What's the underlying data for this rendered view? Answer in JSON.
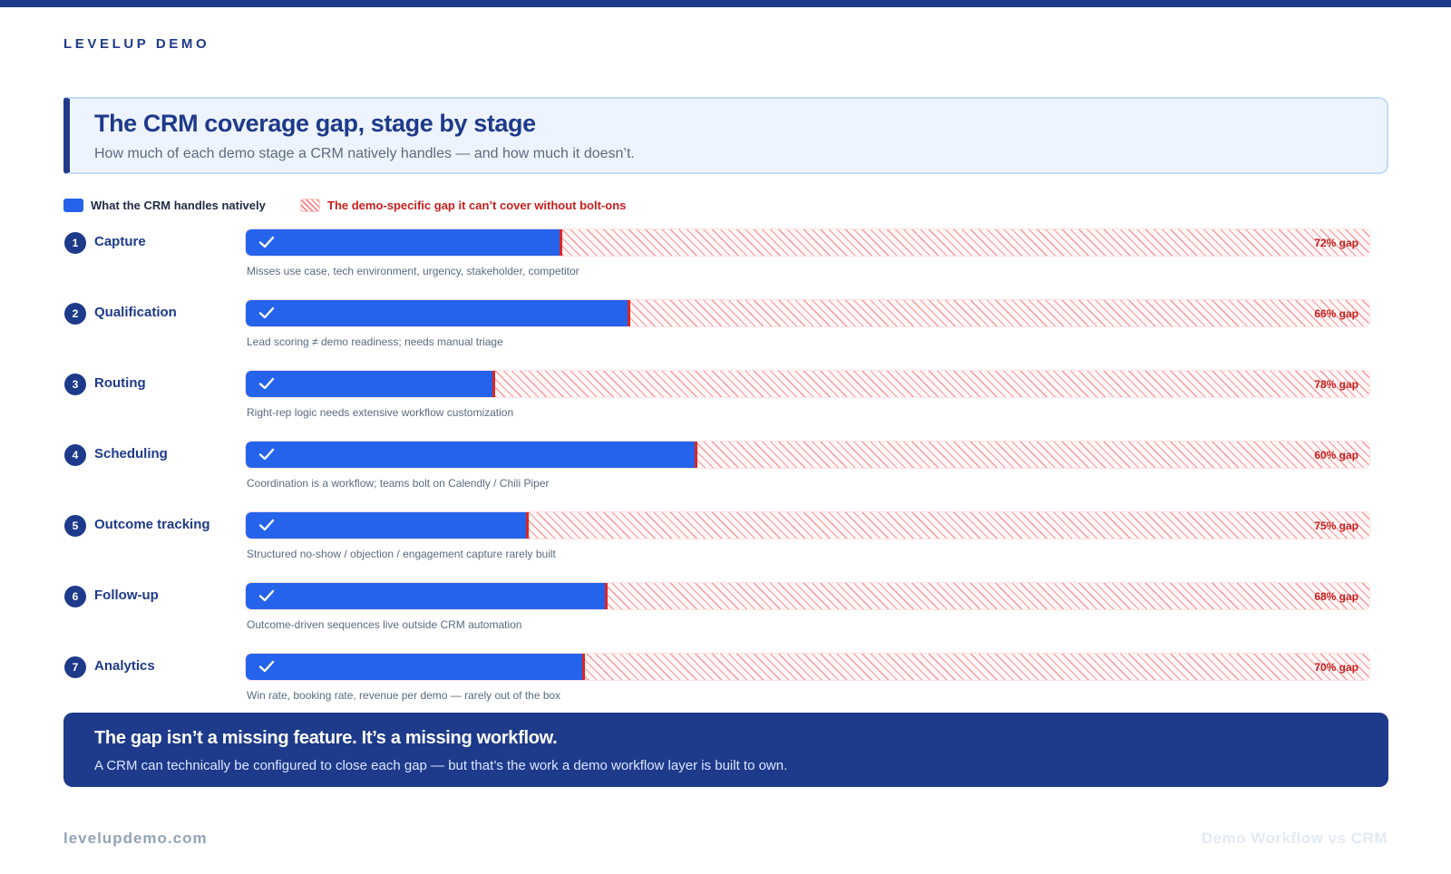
{
  "brand": "LEVELUP DEMO",
  "header": {
    "title": "The CRM coverage gap, stage by stage",
    "subtitle": "How much of each demo stage a CRM natively handles — and how much it doesn’t."
  },
  "legend": {
    "native_label": "What the CRM handles natively",
    "gap_label": "The demo-specific gap it can’t cover without bolt-ons"
  },
  "colors": {
    "native": "#2563eb",
    "gap_hatch": "#f87171",
    "gap_text": "#c81e1e",
    "navy": "#1e3a8a"
  },
  "chart_data": {
    "type": "bar",
    "orientation": "horizontal",
    "stacked": true,
    "xlim": [
      0,
      100
    ],
    "categories": [
      "Capture",
      "Qualification",
      "Routing",
      "Scheduling",
      "Outcome tracking",
      "Follow-up",
      "Analytics"
    ],
    "series": [
      {
        "name": "What the CRM handles natively",
        "values": [
          28,
          34,
          22,
          40,
          25,
          32,
          30
        ]
      },
      {
        "name": "The demo-specific gap it can’t cover without bolt-ons",
        "values": [
          72,
          66,
          78,
          60,
          75,
          68,
          70
        ]
      }
    ],
    "stages": [
      {
        "number": "1",
        "name": "Capture",
        "native": 28,
        "gap": 72,
        "gap_label": "72% gap",
        "note": "Misses use case, tech environment, urgency, stakeholder, competitor"
      },
      {
        "number": "2",
        "name": "Qualification",
        "native": 34,
        "gap": 66,
        "gap_label": "66% gap",
        "note": "Lead scoring ≠ demo readiness; needs manual triage"
      },
      {
        "number": "3",
        "name": "Routing",
        "native": 22,
        "gap": 78,
        "gap_label": "78% gap",
        "note": "Right-rep logic needs extensive workflow customization"
      },
      {
        "number": "4",
        "name": "Scheduling",
        "native": 40,
        "gap": 60,
        "gap_label": "60% gap",
        "note": "Coordination is a workflow; teams bolt on Calendly / Chili Piper"
      },
      {
        "number": "5",
        "name": "Outcome tracking",
        "native": 25,
        "gap": 75,
        "gap_label": "75% gap",
        "note": "Structured no-show / objection / engagement capture rarely built"
      },
      {
        "number": "6",
        "name": "Follow-up",
        "native": 32,
        "gap": 68,
        "gap_label": "68% gap",
        "note": "Outcome-driven sequences live outside CRM automation"
      },
      {
        "number": "7",
        "name": "Analytics",
        "native": 30,
        "gap": 70,
        "gap_label": "70% gap",
        "note": "Win rate, booking rate, revenue per demo — rarely out of the box"
      }
    ]
  },
  "callout": {
    "title": "The gap isn’t a missing feature. It’s a missing workflow.",
    "body": "A CRM can technically be configured to close each gap — but that’s the work a demo workflow layer is built to own."
  },
  "footer": {
    "site": "levelupdemo.com",
    "section": "Demo Workflow vs CRM"
  }
}
